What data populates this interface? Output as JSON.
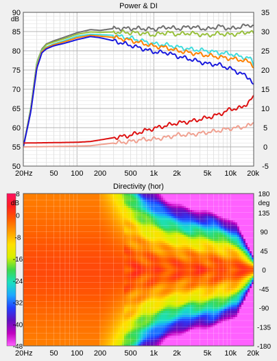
{
  "chart_data": [
    {
      "type": "line",
      "title": "Power & DI",
      "left_axis": {
        "unit": "dB",
        "ylim": [
          50,
          90
        ],
        "ticks": [
          90,
          85,
          80,
          75,
          70,
          65,
          60,
          55,
          50
        ]
      },
      "right_axis": {
        "ylim": [
          -5,
          35
        ],
        "ticks": [
          35,
          30,
          25,
          20,
          15,
          10,
          5,
          0,
          -5
        ]
      },
      "x_axis": {
        "scale": "log",
        "xlim": [
          20,
          20000
        ],
        "ticks": [
          {
            "value": 20,
            "label": "20Hz"
          },
          {
            "value": 50,
            "label": "50"
          },
          {
            "value": 100,
            "label": "100"
          },
          {
            "value": 200,
            "label": "200"
          },
          {
            "value": 500,
            "label": "500"
          },
          {
            "value": 1000,
            "label": "1k"
          },
          {
            "value": 2000,
            "label": "2k"
          },
          {
            "value": 5000,
            "label": "5k"
          },
          {
            "value": 10000,
            "label": "10k"
          },
          {
            "value": 20000,
            "label": "20k"
          }
        ]
      },
      "grid": true,
      "series": [
        {
          "color": "#6e6e6e",
          "axis": "left",
          "points": [
            [
              20,
              55
            ],
            [
              25,
              65
            ],
            [
              30,
              77
            ],
            [
              35,
              80.5
            ],
            [
              40,
              81.8
            ],
            [
              50,
              82.6
            ],
            [
              70,
              83.6
            ],
            [
              100,
              84.7
            ],
            [
              150,
              85.5
            ],
            [
              200,
              85.3
            ],
            [
              300,
              85.8
            ],
            [
              500,
              85.8
            ],
            [
              700,
              85.8
            ],
            [
              1000,
              85.6
            ],
            [
              1500,
              86.2
            ],
            [
              2000,
              85.7
            ],
            [
              3000,
              86.3
            ],
            [
              5000,
              85.6
            ],
            [
              7000,
              86.4
            ],
            [
              10000,
              85.7
            ],
            [
              14000,
              86.3
            ],
            [
              18000,
              86.8
            ],
            [
              20000,
              86.3
            ]
          ]
        },
        {
          "color": "#98c03c",
          "axis": "left",
          "points": [
            [
              20,
              55
            ],
            [
              25,
              65
            ],
            [
              30,
              77
            ],
            [
              35,
              80.3
            ],
            [
              40,
              81.6
            ],
            [
              50,
              82.3
            ],
            [
              70,
              83.2
            ],
            [
              100,
              84.3
            ],
            [
              150,
              84.9
            ],
            [
              200,
              84.8
            ],
            [
              300,
              84.9
            ],
            [
              500,
              84.7
            ],
            [
              700,
              84.6
            ],
            [
              1000,
              84.1
            ],
            [
              1500,
              84.8
            ],
            [
              2000,
              84.3
            ],
            [
              3000,
              84.6
            ],
            [
              5000,
              84.0
            ],
            [
              7000,
              84.5
            ],
            [
              10000,
              84.2
            ],
            [
              14000,
              84.6
            ],
            [
              18000,
              85.0
            ],
            [
              20000,
              84.3
            ]
          ]
        },
        {
          "color": "#40dcdc",
          "axis": "left",
          "points": [
            [
              20,
              55
            ],
            [
              25,
              65
            ],
            [
              30,
              76.5
            ],
            [
              35,
              80
            ],
            [
              40,
              81
            ],
            [
              50,
              81.8
            ],
            [
              70,
              82.7
            ],
            [
              100,
              83.8
            ],
            [
              150,
              84.3
            ],
            [
              200,
              84.2
            ],
            [
              300,
              84.0
            ],
            [
              500,
              83.3
            ],
            [
              700,
              82.6
            ],
            [
              1000,
              81.8
            ],
            [
              1500,
              81.5
            ],
            [
              2000,
              81.0
            ],
            [
              3000,
              80.4
            ],
            [
              5000,
              80.0
            ],
            [
              7000,
              79.5
            ],
            [
              10000,
              79.2
            ],
            [
              14000,
              78.4
            ],
            [
              18000,
              78.0
            ],
            [
              20000,
              76.5
            ]
          ]
        },
        {
          "color": "#ff8000",
          "axis": "left",
          "points": [
            [
              20,
              55
            ],
            [
              25,
              64.5
            ],
            [
              30,
              76
            ],
            [
              35,
              79.8
            ],
            [
              40,
              80.8
            ],
            [
              50,
              81.6
            ],
            [
              70,
              82.4
            ],
            [
              100,
              83.4
            ],
            [
              150,
              84.0
            ],
            [
              200,
              83.8
            ],
            [
              300,
              83.5
            ],
            [
              500,
              82.7
            ],
            [
              700,
              82.0
            ],
            [
              1000,
              81.2
            ],
            [
              1500,
              80.8
            ],
            [
              2000,
              80.0
            ],
            [
              3000,
              79.5
            ],
            [
              5000,
              78.8
            ],
            [
              7000,
              78.4
            ],
            [
              10000,
              78.0
            ],
            [
              14000,
              77.6
            ],
            [
              18000,
              77.0
            ],
            [
              20000,
              76.0
            ]
          ]
        },
        {
          "color": "#1818dd",
          "axis": "left",
          "points": [
            [
              20,
              55
            ],
            [
              25,
              64
            ],
            [
              30,
              75.5
            ],
            [
              35,
              79.5
            ],
            [
              40,
              80.5
            ],
            [
              50,
              81.3
            ],
            [
              70,
              82.0
            ],
            [
              100,
              82.9
            ],
            [
              150,
              83.7
            ],
            [
              200,
              83.4
            ],
            [
              300,
              82.6
            ],
            [
              500,
              81.4
            ],
            [
              700,
              80.6
            ],
            [
              1000,
              79.7
            ],
            [
              1500,
              79.5
            ],
            [
              2000,
              78.6
            ],
            [
              3000,
              77.8
            ],
            [
              5000,
              76.6
            ],
            [
              7000,
              76.4
            ],
            [
              10000,
              75.3
            ],
            [
              14000,
              74.0
            ],
            [
              18000,
              72.8
            ],
            [
              20000,
              71.0
            ]
          ]
        },
        {
          "color": "#dd1010",
          "axis": "right",
          "points": [
            [
              20,
              1
            ],
            [
              50,
              1.1
            ],
            [
              100,
              1.2
            ],
            [
              150,
              1.4
            ],
            [
              200,
              1.8
            ],
            [
              300,
              2.4
            ],
            [
              500,
              3.0
            ],
            [
              700,
              4.0
            ],
            [
              1000,
              4.8
            ],
            [
              1500,
              5.6
            ],
            [
              2000,
              6.2
            ],
            [
              3000,
              6.6
            ],
            [
              5000,
              7.6
            ],
            [
              7000,
              8.4
            ],
            [
              10000,
              9.8
            ],
            [
              14000,
              10.2
            ],
            [
              18000,
              12.0
            ],
            [
              20000,
              13.0
            ]
          ]
        },
        {
          "color": "#f0a090",
          "axis": "right",
          "points": [
            [
              20,
              0
            ],
            [
              50,
              0.1
            ],
            [
              100,
              0.2
            ],
            [
              150,
              0.3
            ],
            [
              200,
              0.6
            ],
            [
              300,
              1.0
            ],
            [
              500,
              1.4
            ],
            [
              700,
              1.9
            ],
            [
              1000,
              2.0
            ],
            [
              1500,
              2.5
            ],
            [
              2000,
              3.1
            ],
            [
              3000,
              3.2
            ],
            [
              5000,
              3.8
            ],
            [
              7000,
              4.2
            ],
            [
              10000,
              4.8
            ],
            [
              14000,
              5.1
            ],
            [
              18000,
              5.6
            ],
            [
              20000,
              6.4
            ]
          ]
        }
      ]
    },
    {
      "type": "heatmap",
      "title": "Directivity (hor)",
      "colorbar": {
        "unit": "dB",
        "ticks": [
          8,
          0,
          -8,
          -16,
          -24,
          -32,
          -40,
          -48
        ],
        "range": [
          -48,
          8
        ],
        "stops": [
          "#ff1060",
          "#ff2020",
          "#ff5a00",
          "#ff9c00",
          "#ffe000",
          "#d8f000",
          "#3ed84a",
          "#18e0c0",
          "#1ca8ff",
          "#2040ff",
          "#6010c0",
          "#c000c0",
          "#ff60ff"
        ]
      },
      "y_axis": {
        "unit": "deg",
        "ylim": [
          -180,
          180
        ],
        "ticks": [
          180,
          135,
          90,
          45,
          0,
          -45,
          -90,
          -135,
          -180
        ]
      },
      "x_axis": {
        "scale": "log",
        "xlim": [
          20,
          20000
        ],
        "ticks": [
          {
            "value": 20,
            "label": "20Hz"
          },
          {
            "value": 50,
            "label": "50"
          },
          {
            "value": 100,
            "label": "100"
          },
          {
            "value": 200,
            "label": "200"
          },
          {
            "value": 500,
            "label": "500"
          },
          {
            "value": 1000,
            "label": "1k"
          },
          {
            "value": 2000,
            "label": "2k"
          },
          {
            "value": 5000,
            "label": "5k"
          },
          {
            "value": 10000,
            "label": "10k"
          },
          {
            "value": 20000,
            "label": "20k"
          }
        ]
      },
      "beamwidth_6db_deg": [
        [
          20,
          180
        ],
        [
          200,
          180
        ],
        [
          300,
          120
        ],
        [
          400,
          90
        ],
        [
          700,
          60
        ],
        [
          1500,
          46
        ],
        [
          3000,
          40
        ],
        [
          6000,
          38
        ],
        [
          12000,
          30
        ],
        [
          20000,
          8
        ]
      ]
    }
  ]
}
